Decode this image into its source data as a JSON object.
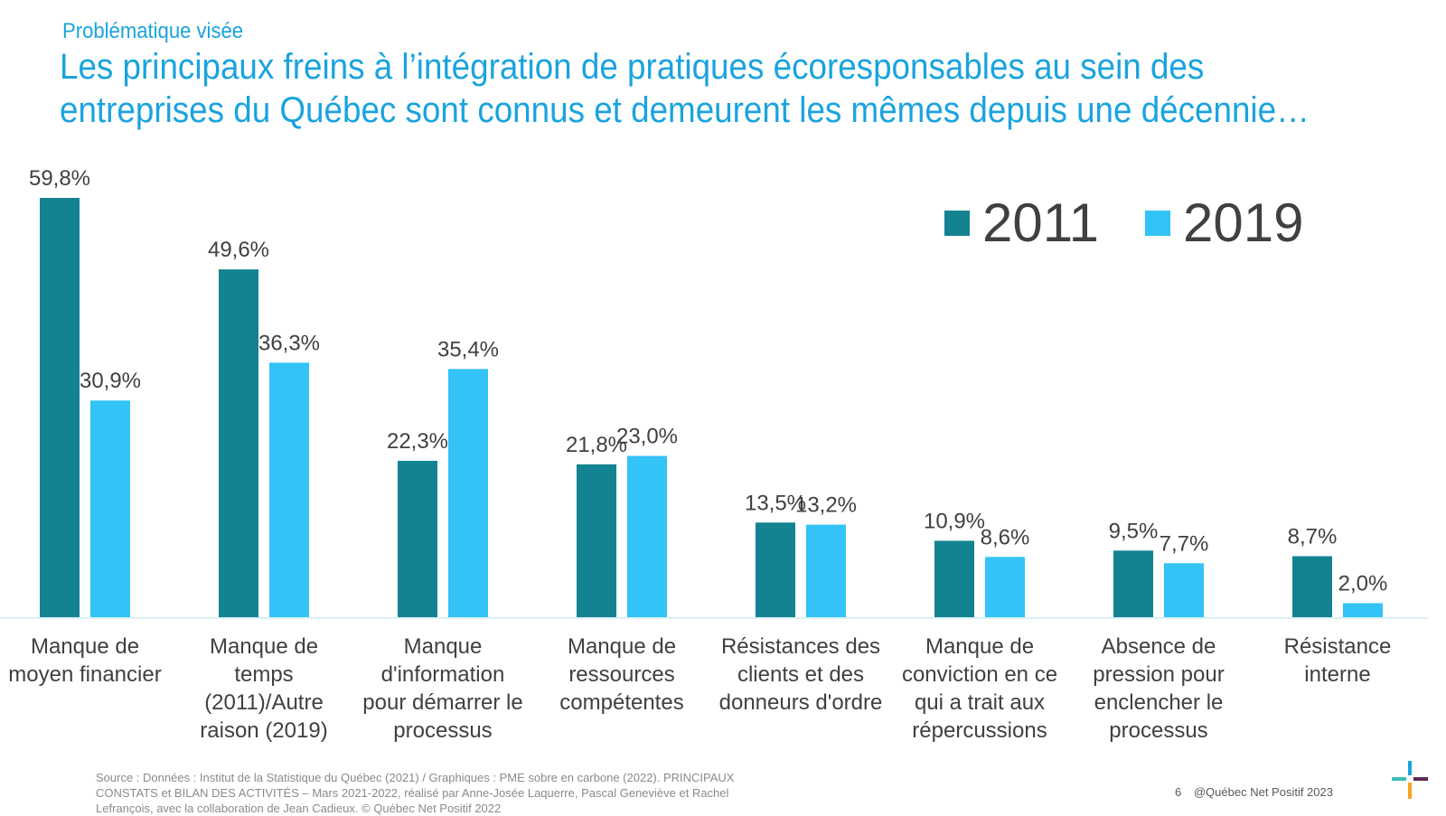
{
  "header": {
    "kicker": "Problématique visée",
    "title": "Les principaux freins à l’intégration de pratiques écoresponsables au sein des entreprises du Québec sont connus et demeurent les mêmes depuis une décennie…"
  },
  "chart_data": {
    "type": "bar",
    "categories": [
      "Manque de moyen financier",
      "Manque de temps (2011)/Autre raison (2019)",
      "Manque d'information pour démarrer le processus",
      "Manque de ressources compétentes",
      "Résistances des clients et des donneurs d'ordre",
      "Manque de conviction en ce qui a trait aux répercussions",
      "Absence de pression pour enclencher le processus",
      "Résistance interne"
    ],
    "series": [
      {
        "name": "2011",
        "color": "#138391",
        "values": [
          59.8,
          49.6,
          22.3,
          21.8,
          13.5,
          10.9,
          9.5,
          8.7
        ],
        "labels": [
          "59,8%",
          "49,6%",
          "22,3%",
          "21,8%",
          "13,5%",
          "10,9%",
          "9,5%",
          "8,7%"
        ]
      },
      {
        "name": "2019",
        "color": "#33c3f7",
        "values": [
          30.9,
          36.3,
          35.4,
          23.0,
          13.2,
          8.6,
          7.7,
          2.0
        ],
        "labels": [
          "30,9%",
          "36,3%",
          "35,4%",
          "23,0%",
          "13,2%",
          "8,6%",
          "7,7%",
          "2,0%"
        ]
      }
    ],
    "xlabel": "",
    "ylabel": "",
    "ylim": [
      0,
      60
    ],
    "grid": false,
    "legend": "top-right",
    "data_labels": true
  },
  "footer": {
    "source": "Source : Données : Institut de la Statistique du Québec (2021) / Graphiques : PME sobre en carbone (2022). PRINCIPAUX CONSTATS et BILAN DES ACTIVITÉS – Mars 2021-2022, réalisé par Anne-Josée Laquerre, Pascal Geneviève et Rachel Lefrançois, avec la collaboration de Jean Cadieux. © Québec Net Positif 2022",
    "page_number": "6",
    "copyright": "@Québec Net Positif 2023"
  },
  "colors": {
    "accent": "#1aa3de",
    "axis": "#dbeff7",
    "text": "#404040"
  },
  "logo": {
    "name": "quebec-net-positif-cross-logo",
    "colors": [
      "#3cbfb3",
      "#1aa3de",
      "#5b2b55",
      "#f3a521"
    ]
  }
}
